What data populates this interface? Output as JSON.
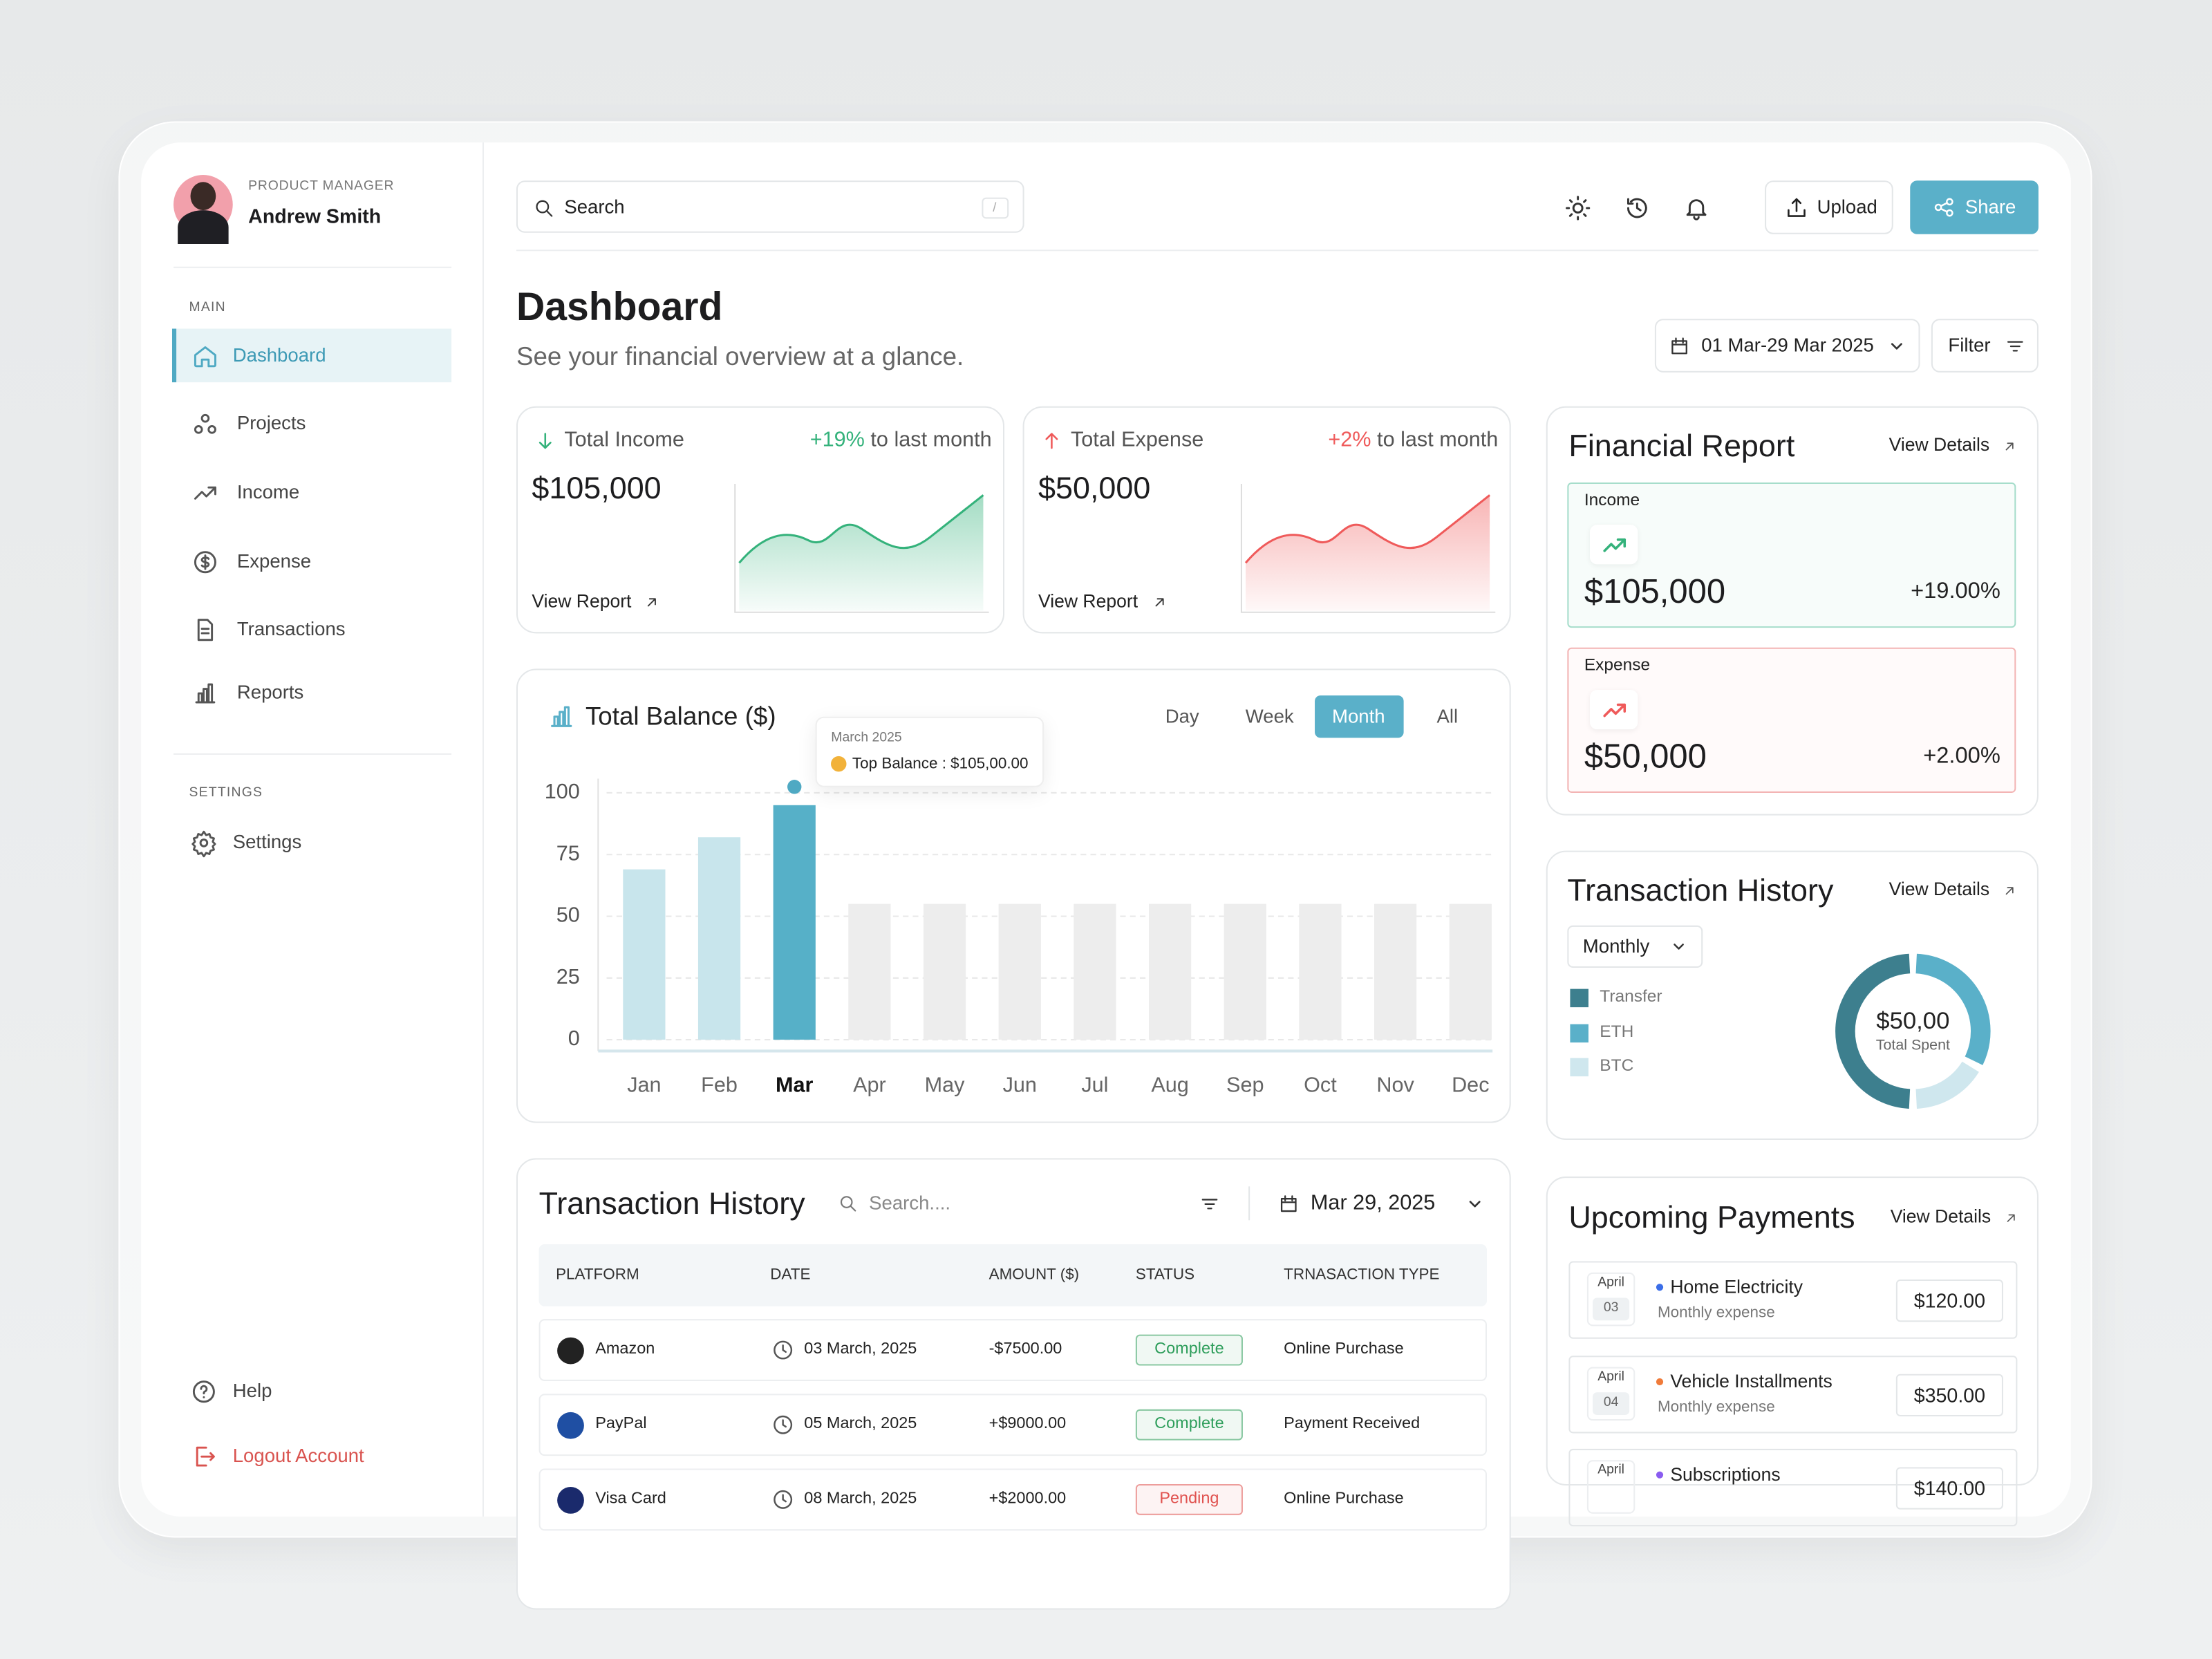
{
  "profile": {
    "role": "PRODUCT MANAGER",
    "name": "Andrew Smith"
  },
  "sidebar": {
    "main_label": "MAIN",
    "main_items": [
      "Dashboard",
      "Projects",
      "Income",
      "Expense",
      "Transactions",
      "Reports"
    ],
    "active_index": 0,
    "settings_label": "SETTINGS",
    "settings_items": [
      "Settings"
    ],
    "footer_items": [
      "Help",
      "Logout Account"
    ]
  },
  "topbar": {
    "search_placeholder": "Search",
    "search_shortcut": "/",
    "upload": "Upload",
    "share": "Share"
  },
  "header": {
    "title": "Dashboard",
    "subtitle": "See your financial overview at a glance.",
    "date_range": "01 Mar-29 Mar 2025",
    "filter": "Filter"
  },
  "stat_cards": [
    {
      "label": "Total Income",
      "change": "+19%",
      "change_suffix": "to last month",
      "value": "$105,000",
      "link": "View Report",
      "color": "#34b27b"
    },
    {
      "label": "Total Expense",
      "change": "+2%",
      "change_suffix": "to last month",
      "value": "$50,000",
      "link": "View Report",
      "color": "#ef5a5a"
    }
  ],
  "chart_data": {
    "type": "bar",
    "title": "Total Balance ($)",
    "periods": [
      "Day",
      "Week",
      "Month",
      "All"
    ],
    "active_period_index": 2,
    "categories": [
      "Jan",
      "Feb",
      "Mar",
      "Apr",
      "May",
      "Jun",
      "Jul",
      "Aug",
      "Sep",
      "Oct",
      "Nov",
      "Dec"
    ],
    "values": [
      69,
      82,
      95,
      55,
      55,
      55,
      55,
      55,
      55,
      55,
      55,
      55
    ],
    "colors": [
      "#c8e5ec",
      "#c8e5ec",
      "#56b0c8",
      "#ededed",
      "#ededed",
      "#ededed",
      "#ededed",
      "#ededed",
      "#ededed",
      "#ededed",
      "#ededed",
      "#ededed"
    ],
    "ylim": [
      0,
      100
    ],
    "yticks": [
      0,
      25,
      50,
      75,
      100
    ],
    "grid": true,
    "tooltip": {
      "index": 2,
      "title": "March 2025",
      "text": "Top Balance : $105,00.00"
    }
  },
  "financial_report": {
    "title": "Financial Report",
    "link": "View Details",
    "items": [
      {
        "label": "Income",
        "value": "$105,000",
        "change": "+19.00%",
        "color": "#34b27b",
        "border": "#a6ddcb",
        "background": "#f7fcfa"
      },
      {
        "label": "Expense",
        "value": "$50,000",
        "change": "+2.00%",
        "color": "#ef5a5a",
        "border": "#f3b4b4",
        "background": "#fffafa"
      }
    ]
  },
  "transaction_summary": {
    "title": "Transaction History",
    "link": "View Details",
    "period": "Monthly",
    "center_value": "$50,00",
    "center_label": "Total Spent",
    "segments": [
      {
        "name": "Transfer",
        "color": "#3d7f8e",
        "value": 50
      },
      {
        "name": "ETH",
        "color": "#5ab0c9",
        "value": 33
      },
      {
        "name": "BTC",
        "color": "#cfe7ee",
        "value": 17
      }
    ]
  },
  "transactions_table": {
    "title": "Transaction History",
    "search_placeholder": "Search....",
    "date": "Mar 29, 2025",
    "columns": [
      "PLATFORM",
      "DATE",
      "AMOUNT ($)",
      "STATUS",
      "TRNASACTION TYPE"
    ],
    "rows": [
      {
        "platform": "Amazon",
        "logo_color": "#222222",
        "date": "03 March, 2025",
        "amount": "-$7500.00",
        "status": "Complete",
        "status_color": "#2e9e5b",
        "type": "Online Purchase"
      },
      {
        "platform": "PayPal",
        "logo_color": "#1f4fa3",
        "date": "05 March, 2025",
        "amount": "+$9000.00",
        "status": "Complete",
        "status_color": "#2e9e5b",
        "type": "Payment Received"
      },
      {
        "platform": "Visa Card",
        "logo_color": "#1a2a6c",
        "date": "08 March, 2025",
        "amount": "+$2000.00",
        "status": "Pending",
        "status_color": "#e0524f",
        "type": "Online Purchase"
      }
    ]
  },
  "upcoming_payments": {
    "title": "Upcoming Payments",
    "link": "View Details",
    "items": [
      {
        "month": "April",
        "day": "03",
        "name": "Home Electricity",
        "note": "Monthly expense",
        "amount": "$120.00",
        "color": "#3b6ee8"
      },
      {
        "month": "April",
        "day": "04",
        "name": "Vehicle Installments",
        "note": "Monthly expense",
        "amount": "$350.00",
        "color": "#f07b3a"
      },
      {
        "month": "April",
        "name": "Subscriptions",
        "amount": "$140.00",
        "color": "#8a5cf0"
      }
    ]
  }
}
